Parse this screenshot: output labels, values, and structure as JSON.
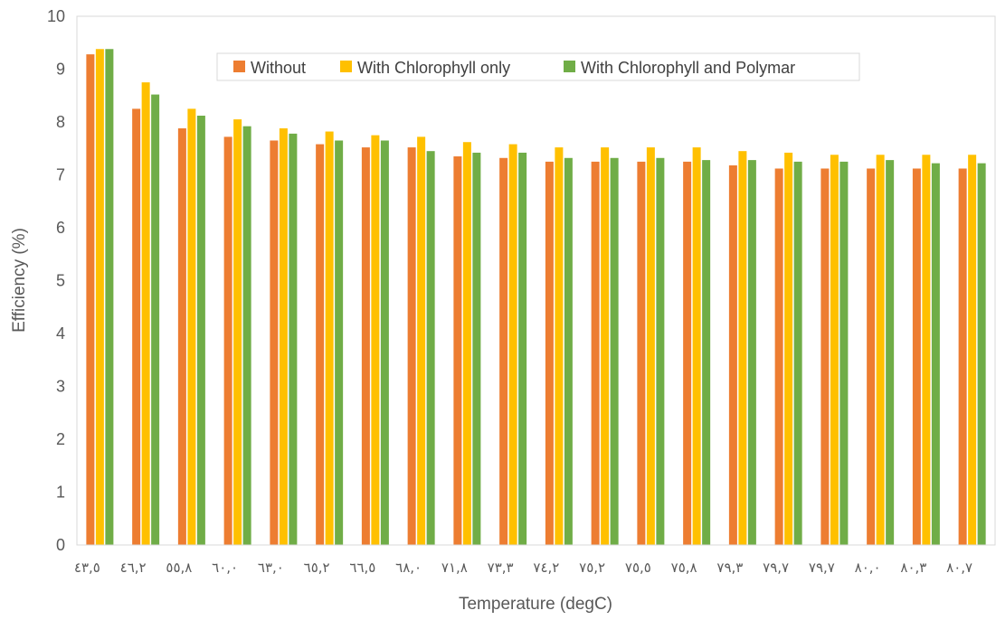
{
  "chart_data": {
    "type": "bar",
    "title": "",
    "xlabel": "Temperature (degC)",
    "ylabel": "Efficiency (%)",
    "ylim": [
      0,
      10
    ],
    "yticks": [
      "0",
      "1",
      "2",
      "3",
      "4",
      "5",
      "6",
      "7",
      "8",
      "9",
      "10"
    ],
    "grid": false,
    "legend_position": "top-center",
    "categories": [
      "٤٣,٥",
      "٤٦,٢",
      "٥٥,٨",
      "٦٠,٠",
      "٦٣,٠",
      "٦٥,٢",
      "٦٦,٥",
      "٦٨,٠",
      "٧١,٨",
      "٧٣,٣",
      "٧٤,٢",
      "٧٥,٢",
      "٧٥,٥",
      "٧٥,٨",
      "٧٩,٣",
      "٧٩,٧",
      "٧٩,٧",
      "٨٠,٠",
      "٨٠,٣",
      "٨٠,٧"
    ],
    "series": [
      {
        "name": "Without",
        "color": "#ED7D31",
        "values": [
          9.28,
          8.25,
          7.88,
          7.72,
          7.65,
          7.58,
          7.52,
          7.52,
          7.35,
          7.32,
          7.25,
          7.25,
          7.25,
          7.25,
          7.18,
          7.12,
          7.12,
          7.12,
          7.12,
          7.12
        ]
      },
      {
        "name": "With Chlorophyll only",
        "color": "#FFC000",
        "values": [
          9.38,
          8.75,
          8.25,
          8.05,
          7.88,
          7.82,
          7.75,
          7.72,
          7.62,
          7.58,
          7.52,
          7.52,
          7.52,
          7.52,
          7.45,
          7.42,
          7.38,
          7.38,
          7.38,
          7.38
        ]
      },
      {
        "name": "With Chlorophyll and Polymar",
        "color": "#70AD47",
        "values": [
          9.38,
          8.52,
          8.12,
          7.92,
          7.78,
          7.65,
          7.65,
          7.45,
          7.42,
          7.42,
          7.32,
          7.32,
          7.32,
          7.28,
          7.28,
          7.25,
          7.25,
          7.28,
          7.22,
          7.22
        ]
      }
    ]
  }
}
